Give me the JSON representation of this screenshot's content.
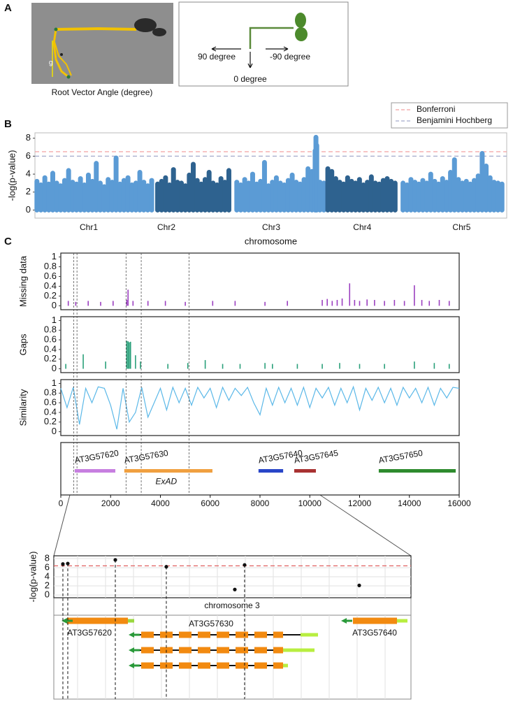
{
  "panel_labels": [
    "A",
    "B",
    "C"
  ],
  "panel_a": {
    "caption": "Root Vector Angle (degree)",
    "gravity_label": "g",
    "directions": [
      "90 degree",
      "-90 degree",
      "0 degree"
    ]
  },
  "chart_data": [
    {
      "type": "scatter",
      "ylabel": "-log(p-value)",
      "xlabel": "chromosome",
      "xlim": [
        0,
        119.2
      ],
      "ylim": [
        -0.9,
        8.6
      ],
      "yticks": [
        0,
        2,
        4,
        6,
        8
      ],
      "xticks": [
        {
          "value": 13.6,
          "label": "Chr1"
        },
        {
          "value": 33.2,
          "label": "Chr2"
        },
        {
          "value": 59.7,
          "label": "Chr3"
        },
        {
          "value": 82.7,
          "label": "Chr4"
        },
        {
          "value": 107.8,
          "label": "Chr5"
        }
      ],
      "thresholds": [
        {
          "name": "Bonferroni",
          "value": 6.5,
          "color": "#f2a0a0"
        },
        {
          "name": "Benjamini Hochberg",
          "value": 6.0,
          "color": "#a3aacb"
        }
      ],
      "series": [
        {
          "color": "#5b9bd5",
          "x": [
            0.5,
            1.5,
            2.5,
            3.5,
            4.5,
            5.5,
            6.5,
            7.5,
            8.5,
            9.5,
            10.5,
            11.5,
            12.5,
            13.5,
            14.5,
            15.5,
            16.5,
            17.5,
            18.5,
            19.5,
            20.5,
            21.5,
            22.5,
            23.5,
            24.5,
            25.5,
            26.5,
            27.5,
            28.5,
            29.5
          ],
          "values": [
            3.2,
            2.8,
            3.6,
            2.9,
            4.1,
            3.0,
            2.7,
            3.3,
            4.4,
            3.1,
            2.9,
            3.5,
            2.8,
            3.9,
            3.2,
            5.2,
            3.0,
            2.6,
            3.4,
            3.1,
            5.8,
            2.9,
            3.3,
            3.6,
            2.8,
            3.0,
            4.2,
            3.1,
            2.7,
            3.3
          ]
        },
        {
          "color": "#2e628f",
          "x": [
            31,
            32,
            33,
            34,
            35,
            36,
            37,
            38,
            39,
            40,
            41,
            42,
            43,
            44,
            45,
            46,
            47,
            48,
            49
          ],
          "values": [
            2.9,
            3.2,
            3.6,
            2.8,
            4.5,
            3.1,
            3.0,
            2.7,
            3.9,
            5.1,
            3.3,
            2.9,
            3.4,
            4.2,
            3.0,
            2.8,
            3.5,
            3.1,
            4.4
          ]
        },
        {
          "color": "#5b9bd5",
          "x": [
            51,
            52,
            53,
            54,
            55,
            56,
            57,
            58,
            59,
            60,
            61,
            62,
            63,
            64,
            65,
            66,
            67,
            68,
            69,
            70,
            70.8,
            71,
            71.2,
            72,
            73
          ],
          "values": [
            3.1,
            2.8,
            3.4,
            3.0,
            4.0,
            2.9,
            3.2,
            5.3,
            2.7,
            3.1,
            3.6,
            3.0,
            2.8,
            3.3,
            3.9,
            3.1,
            2.9,
            3.4,
            4.6,
            4.3,
            6.6,
            8.1,
            7.2,
            3.1,
            3.0
          ]
        },
        {
          "color": "#2e628f",
          "x": [
            74,
            75,
            76,
            77,
            78,
            79,
            80,
            81,
            82,
            83,
            84,
            85,
            86,
            87,
            88,
            89,
            90,
            91
          ],
          "values": [
            4.6,
            4.3,
            3.5,
            3.1,
            2.9,
            3.6,
            3.2,
            3.0,
            3.4,
            2.8,
            3.1,
            3.7,
            3.0,
            2.9,
            3.3,
            3.5,
            3.2,
            3.0
          ]
        },
        {
          "color": "#5b9bd5",
          "x": [
            93,
            94,
            95,
            96,
            97,
            98,
            99,
            100,
            101,
            102,
            103,
            104,
            105,
            106,
            107,
            108,
            109,
            110,
            111,
            112,
            113,
            114,
            115,
            116,
            117,
            118
          ],
          "values": [
            3.0,
            2.8,
            3.4,
            3.1,
            2.9,
            3.3,
            3.0,
            4.0,
            3.2,
            2.9,
            3.5,
            3.1,
            4.2,
            5.6,
            3.4,
            3.0,
            3.2,
            2.9,
            3.3,
            3.8,
            6.3,
            4.9,
            3.6,
            3.1,
            3.0,
            2.9
          ]
        }
      ]
    },
    {
      "type": "bar",
      "ylabel": "Missing data",
      "color": "#9b3fc0",
      "xlim": [
        0,
        16000
      ],
      "ylim": [
        -0.08,
        1.08
      ],
      "yticks": [
        0,
        0.2,
        0.4,
        0.6,
        0.8,
        1
      ],
      "x": [
        300,
        600,
        1100,
        1600,
        2100,
        2650,
        2700,
        2900,
        3500,
        4200,
        5000,
        6100,
        7000,
        8200,
        9100,
        10500,
        10700,
        10900,
        11100,
        11300,
        11600,
        11800,
        12000,
        12300,
        12600,
        13000,
        13400,
        13800,
        14200,
        14500,
        14800,
        15200,
        15600
      ],
      "values": [
        0.1,
        0.08,
        0.1,
        0.08,
        0.1,
        0.12,
        0.33,
        0.1,
        0.1,
        0.1,
        0.08,
        0.1,
        0.1,
        0.08,
        0.1,
        0.12,
        0.14,
        0.1,
        0.12,
        0.15,
        0.46,
        0.12,
        0.1,
        0.13,
        0.12,
        0.1,
        0.12,
        0.1,
        0.42,
        0.12,
        0.1,
        0.12,
        0.1
      ]
    },
    {
      "type": "bar",
      "ylabel": "Gaps",
      "color": "#2aa07a",
      "xlim": [
        0,
        16000
      ],
      "ylim": [
        -0.08,
        1.08
      ],
      "yticks": [
        0,
        0.2,
        0.4,
        0.6,
        0.8,
        1
      ],
      "x": [
        200,
        900,
        1800,
        2650,
        2700,
        2750,
        2800,
        3000,
        3200,
        4300,
        5100,
        5800,
        6500,
        7200,
        8200,
        8500,
        9500,
        10500,
        11200,
        12000,
        13000,
        14200,
        15000,
        15600
      ],
      "values": [
        0.1,
        0.3,
        0.15,
        0.58,
        0.57,
        0.55,
        0.56,
        0.28,
        0.15,
        0.1,
        0.12,
        0.18,
        0.1,
        0.1,
        0.12,
        0.1,
        0.1,
        0.1,
        0.12,
        0.1,
        0.1,
        0.15,
        0.12,
        0.1
      ]
    },
    {
      "type": "line",
      "ylabel": "Similarity",
      "color": "#5bb8e8",
      "xlim": [
        0,
        16000
      ],
      "ylim": [
        -0.08,
        1.08
      ],
      "yticks": [
        0,
        0.2,
        0.4,
        0.6,
        0.8,
        1
      ],
      "x": [
        0,
        250,
        500,
        750,
        1000,
        1250,
        1500,
        1750,
        2000,
        2250,
        2500,
        2750,
        3000,
        3250,
        3500,
        3750,
        4000,
        4250,
        4500,
        4750,
        5000,
        5250,
        5500,
        5750,
        6000,
        6250,
        6500,
        6750,
        7000,
        7250,
        7500,
        7750,
        8000,
        8250,
        8500,
        8750,
        9000,
        9250,
        9500,
        9750,
        10000,
        10250,
        10500,
        10750,
        11000,
        11250,
        11500,
        11750,
        12000,
        12250,
        12500,
        12750,
        13000,
        13250,
        13500,
        13750,
        14000,
        14250,
        14500,
        14750,
        15000,
        15250,
        15500,
        15750,
        16000
      ],
      "values": [
        0.9,
        0.5,
        0.92,
        0.15,
        0.9,
        0.6,
        0.93,
        0.9,
        0.55,
        0.05,
        0.9,
        0.2,
        0.4,
        0.92,
        0.3,
        0.6,
        0.9,
        0.45,
        0.92,
        0.6,
        0.9,
        0.55,
        0.92,
        0.7,
        0.9,
        0.5,
        0.92,
        0.65,
        0.9,
        0.75,
        0.92,
        0.6,
        0.35,
        0.9,
        0.55,
        0.92,
        0.6,
        0.9,
        0.55,
        0.92,
        0.5,
        0.9,
        0.7,
        0.92,
        0.55,
        0.9,
        0.6,
        0.93,
        0.45,
        0.9,
        0.65,
        0.92,
        0.6,
        0.9,
        0.55,
        0.92,
        0.7,
        0.9,
        0.6,
        0.92,
        0.55,
        0.9,
        0.7,
        0.92,
        0.9
      ]
    },
    {
      "type": "gene-track",
      "xlim": [
        0,
        16000
      ],
      "xticks": [
        0,
        2000,
        4000,
        6000,
        8000,
        10000,
        12000,
        14000,
        16000
      ],
      "genes": [
        {
          "name": "AT3G57620",
          "start": 560,
          "end": 2190,
          "color": "#c77fe0"
        },
        {
          "name": "AT3G57630",
          "start": 2550,
          "end": 6090,
          "color": "#f0a040"
        },
        {
          "name": "AT3G57640",
          "start": 7940,
          "end": 8930,
          "color": "#2946c8"
        },
        {
          "name": "AT3G57645",
          "start": 9375,
          "end": 10245,
          "color": "#a83232"
        },
        {
          "name": "AT3G57650",
          "start": 12770,
          "end": 15860,
          "color": "#2e8b2e"
        }
      ],
      "annotation": "ExAD",
      "snp_positions": [
        520,
        650,
        2620,
        3230,
        5150
      ]
    },
    {
      "type": "scatter",
      "ylabel": "-log(p-value)",
      "xlim": [
        0,
        10000
      ],
      "ylim": [
        -0.6,
        8.6
      ],
      "yticks": [
        0,
        2,
        4,
        6,
        8
      ],
      "grid": true,
      "threshold": 6.4,
      "threshold_color": "#e06060",
      "x": [
        254,
        391,
        1722,
        3150,
        5068,
        5342,
        8552
      ],
      "values": [
        6.8,
        6.9,
        7.7,
        6.2,
        1.2,
        6.6,
        2.1
      ],
      "region_label": "chromosome 3",
      "gene_labels": [
        "AT3G57620",
        "AT3G57630",
        "AT3G57640"
      ]
    }
  ]
}
